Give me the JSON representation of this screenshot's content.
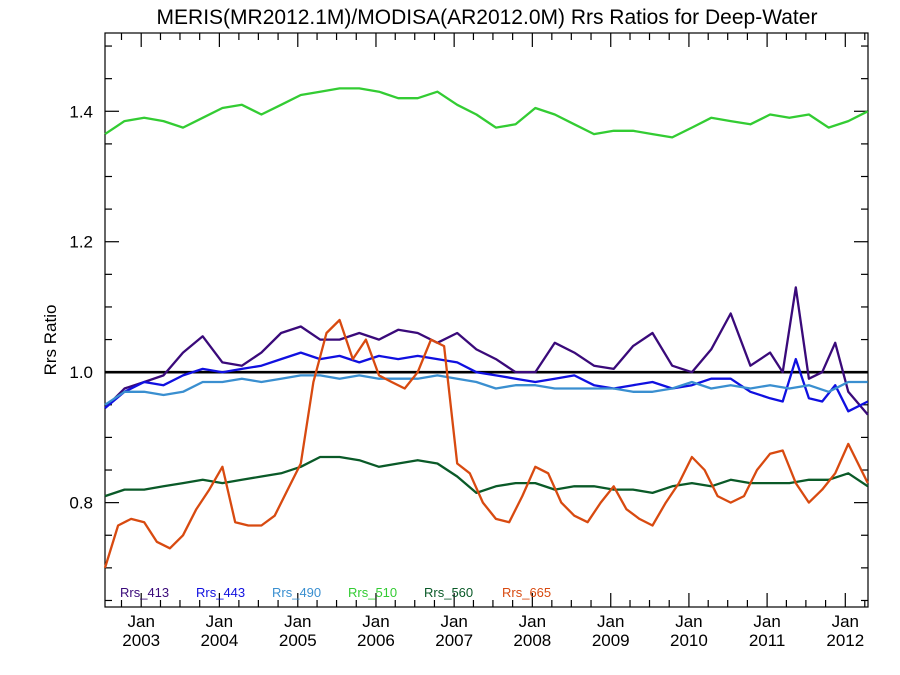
{
  "chart_data": {
    "type": "line",
    "title": "MERIS(MR2012.1M)/MODISA(AR2012.0M)  Rrs Ratios for Deep-Water",
    "ylabel": "Rrs Ratio",
    "xlabel": "",
    "xlim": [
      "2002-07-16",
      "2012-04-16"
    ],
    "ylim": [
      0.64,
      1.52
    ],
    "yticks": [
      0.8,
      1.0,
      1.2,
      1.4
    ],
    "ytick_labels": [
      "0.8",
      "1.0",
      "1.2",
      "1.4"
    ],
    "xticks": [
      "2003-01-01",
      "2004-01-01",
      "2005-01-01",
      "2006-01-01",
      "2007-01-01",
      "2008-01-01",
      "2009-01-01",
      "2010-01-01",
      "2011-01-01",
      "2012-01-01"
    ],
    "xtick_labels": [
      {
        "month": "Jan",
        "year": "2003"
      },
      {
        "month": "Jan",
        "year": "2004"
      },
      {
        "month": "Jan",
        "year": "2005"
      },
      {
        "month": "Jan",
        "year": "2006"
      },
      {
        "month": "Jan",
        "year": "2007"
      },
      {
        "month": "Jan",
        "year": "2008"
      },
      {
        "month": "Jan",
        "year": "2009"
      },
      {
        "month": "Jan",
        "year": "2010"
      },
      {
        "month": "Jan",
        "year": "2011"
      },
      {
        "month": "Jan",
        "year": "2012"
      }
    ],
    "reference_line": {
      "y": 1.0,
      "color": "#000000"
    },
    "legend_position": "bottom-left",
    "series": [
      {
        "name": "Rrs_413",
        "color": "#3a0a7a",
        "x": [
          "2002-07",
          "2002-10",
          "2003-01",
          "2003-04",
          "2003-07",
          "2003-10",
          "2004-01",
          "2004-04",
          "2004-07",
          "2004-10",
          "2005-01",
          "2005-04",
          "2005-07",
          "2005-10",
          "2006-01",
          "2006-04",
          "2006-07",
          "2006-10",
          "2007-01",
          "2007-04",
          "2007-07",
          "2007-10",
          "2008-01",
          "2008-04",
          "2008-07",
          "2008-10",
          "2009-01",
          "2009-04",
          "2009-07",
          "2009-10",
          "2010-01",
          "2010-04",
          "2010-07",
          "2010-10",
          "2011-01",
          "2011-03",
          "2011-05",
          "2011-07",
          "2011-09",
          "2011-11",
          "2012-01",
          "2012-04"
        ],
        "y": [
          0.945,
          0.975,
          0.985,
          0.995,
          1.03,
          1.055,
          1.015,
          1.01,
          1.03,
          1.06,
          1.07,
          1.05,
          1.05,
          1.06,
          1.05,
          1.065,
          1.06,
          1.045,
          1.06,
          1.035,
          1.02,
          1.0,
          1.0,
          1.045,
          1.03,
          1.01,
          1.005,
          1.04,
          1.06,
          1.01,
          1.0,
          1.035,
          1.09,
          1.01,
          1.03,
          1.0,
          1.13,
          0.99,
          1.0,
          1.045,
          0.97,
          0.935
        ]
      },
      {
        "name": "Rrs_443",
        "color": "#1010e0",
        "x": [
          "2002-07",
          "2002-10",
          "2003-01",
          "2003-04",
          "2003-07",
          "2003-10",
          "2004-01",
          "2004-04",
          "2004-07",
          "2004-10",
          "2005-01",
          "2005-04",
          "2005-07",
          "2005-10",
          "2006-01",
          "2006-04",
          "2006-07",
          "2006-10",
          "2007-01",
          "2007-04",
          "2007-07",
          "2007-10",
          "2008-01",
          "2008-04",
          "2008-07",
          "2008-10",
          "2009-01",
          "2009-04",
          "2009-07",
          "2009-10",
          "2010-01",
          "2010-04",
          "2010-07",
          "2010-10",
          "2011-01",
          "2011-03",
          "2011-05",
          "2011-07",
          "2011-09",
          "2011-11",
          "2012-01",
          "2012-04"
        ],
        "y": [
          0.945,
          0.97,
          0.985,
          0.98,
          0.995,
          1.005,
          1.0,
          1.005,
          1.01,
          1.02,
          1.03,
          1.02,
          1.025,
          1.015,
          1.025,
          1.02,
          1.025,
          1.02,
          1.015,
          1.0,
          0.995,
          0.99,
          0.985,
          0.99,
          0.995,
          0.98,
          0.975,
          0.98,
          0.985,
          0.975,
          0.98,
          0.99,
          0.99,
          0.97,
          0.96,
          0.955,
          1.02,
          0.96,
          0.955,
          0.98,
          0.94,
          0.955
        ]
      },
      {
        "name": "Rrs_490",
        "color": "#3a8fd0",
        "x": [
          "2002-07",
          "2002-10",
          "2003-01",
          "2003-04",
          "2003-07",
          "2003-10",
          "2004-01",
          "2004-04",
          "2004-07",
          "2004-10",
          "2005-01",
          "2005-04",
          "2005-07",
          "2005-10",
          "2006-01",
          "2006-04",
          "2006-07",
          "2006-10",
          "2007-01",
          "2007-04",
          "2007-07",
          "2007-10",
          "2008-01",
          "2008-04",
          "2008-07",
          "2008-10",
          "2009-01",
          "2009-04",
          "2009-07",
          "2009-10",
          "2010-01",
          "2010-04",
          "2010-07",
          "2010-10",
          "2011-01",
          "2011-04",
          "2011-07",
          "2011-10",
          "2012-01",
          "2012-04"
        ],
        "y": [
          0.95,
          0.97,
          0.97,
          0.965,
          0.97,
          0.985,
          0.985,
          0.99,
          0.985,
          0.99,
          0.995,
          0.995,
          0.99,
          0.995,
          0.99,
          0.99,
          0.99,
          0.995,
          0.99,
          0.985,
          0.975,
          0.98,
          0.98,
          0.975,
          0.975,
          0.975,
          0.975,
          0.97,
          0.97,
          0.975,
          0.985,
          0.975,
          0.98,
          0.975,
          0.98,
          0.975,
          0.98,
          0.97,
          0.985,
          0.985
        ]
      },
      {
        "name": "Rrs_510",
        "color": "#33cc33",
        "x": [
          "2002-07",
          "2002-10",
          "2003-01",
          "2003-04",
          "2003-07",
          "2003-10",
          "2004-01",
          "2004-04",
          "2004-07",
          "2004-10",
          "2005-01",
          "2005-04",
          "2005-07",
          "2005-10",
          "2006-01",
          "2006-04",
          "2006-07",
          "2006-10",
          "2007-01",
          "2007-04",
          "2007-07",
          "2007-10",
          "2008-01",
          "2008-04",
          "2008-07",
          "2008-10",
          "2009-01",
          "2009-04",
          "2009-07",
          "2009-10",
          "2010-01",
          "2010-04",
          "2010-07",
          "2010-10",
          "2011-01",
          "2011-04",
          "2011-07",
          "2011-10",
          "2012-01",
          "2012-04"
        ],
        "y": [
          1.365,
          1.385,
          1.39,
          1.385,
          1.375,
          1.39,
          1.405,
          1.41,
          1.395,
          1.41,
          1.425,
          1.43,
          1.435,
          1.435,
          1.43,
          1.42,
          1.42,
          1.43,
          1.41,
          1.395,
          1.375,
          1.38,
          1.405,
          1.395,
          1.38,
          1.365,
          1.37,
          1.37,
          1.365,
          1.36,
          1.375,
          1.39,
          1.385,
          1.38,
          1.395,
          1.39,
          1.395,
          1.375,
          1.385,
          1.4
        ]
      },
      {
        "name": "Rrs_560",
        "color": "#0a5a28",
        "x": [
          "2002-07",
          "2002-10",
          "2003-01",
          "2003-04",
          "2003-07",
          "2003-10",
          "2004-01",
          "2004-04",
          "2004-07",
          "2004-10",
          "2005-01",
          "2005-04",
          "2005-07",
          "2005-10",
          "2006-01",
          "2006-04",
          "2006-07",
          "2006-10",
          "2007-01",
          "2007-04",
          "2007-07",
          "2007-10",
          "2008-01",
          "2008-04",
          "2008-07",
          "2008-10",
          "2009-01",
          "2009-04",
          "2009-07",
          "2009-10",
          "2010-01",
          "2010-04",
          "2010-07",
          "2010-10",
          "2011-01",
          "2011-04",
          "2011-07",
          "2011-10",
          "2012-01",
          "2012-04"
        ],
        "y": [
          0.81,
          0.82,
          0.82,
          0.825,
          0.83,
          0.835,
          0.83,
          0.835,
          0.84,
          0.845,
          0.855,
          0.87,
          0.87,
          0.865,
          0.855,
          0.86,
          0.865,
          0.86,
          0.84,
          0.815,
          0.825,
          0.83,
          0.83,
          0.82,
          0.825,
          0.825,
          0.82,
          0.82,
          0.815,
          0.825,
          0.83,
          0.825,
          0.835,
          0.83,
          0.83,
          0.83,
          0.835,
          0.835,
          0.845,
          0.825
        ]
      },
      {
        "name": "Rrs_665",
        "color": "#d84a10",
        "x": [
          "2002-07",
          "2002-09",
          "2002-11",
          "2003-01",
          "2003-03",
          "2003-05",
          "2003-07",
          "2003-09",
          "2003-11",
          "2004-01",
          "2004-03",
          "2004-05",
          "2004-07",
          "2004-09",
          "2004-11",
          "2005-01",
          "2005-03",
          "2005-05",
          "2005-07",
          "2005-09",
          "2005-11",
          "2006-01",
          "2006-03",
          "2006-05",
          "2006-07",
          "2006-09",
          "2006-11",
          "2007-01",
          "2007-03",
          "2007-05",
          "2007-07",
          "2007-09",
          "2007-11",
          "2008-01",
          "2008-03",
          "2008-05",
          "2008-07",
          "2008-09",
          "2008-11",
          "2009-01",
          "2009-03",
          "2009-05",
          "2009-07",
          "2009-09",
          "2009-11",
          "2010-01",
          "2010-03",
          "2010-05",
          "2010-07",
          "2010-09",
          "2010-11",
          "2011-01",
          "2011-03",
          "2011-05",
          "2011-07",
          "2011-09",
          "2011-11",
          "2012-01",
          "2012-04"
        ],
        "y": [
          0.7,
          0.765,
          0.775,
          0.77,
          0.74,
          0.73,
          0.75,
          0.79,
          0.82,
          0.855,
          0.77,
          0.765,
          0.765,
          0.78,
          0.82,
          0.86,
          0.985,
          1.06,
          1.08,
          1.02,
          1.05,
          0.995,
          0.985,
          0.975,
          1.0,
          1.05,
          1.04,
          0.86,
          0.845,
          0.8,
          0.775,
          0.77,
          0.81,
          0.855,
          0.845,
          0.8,
          0.78,
          0.77,
          0.8,
          0.825,
          0.79,
          0.775,
          0.765,
          0.8,
          0.83,
          0.87,
          0.85,
          0.81,
          0.8,
          0.81,
          0.85,
          0.875,
          0.88,
          0.83,
          0.8,
          0.82,
          0.845,
          0.89,
          0.83
        ]
      }
    ]
  }
}
